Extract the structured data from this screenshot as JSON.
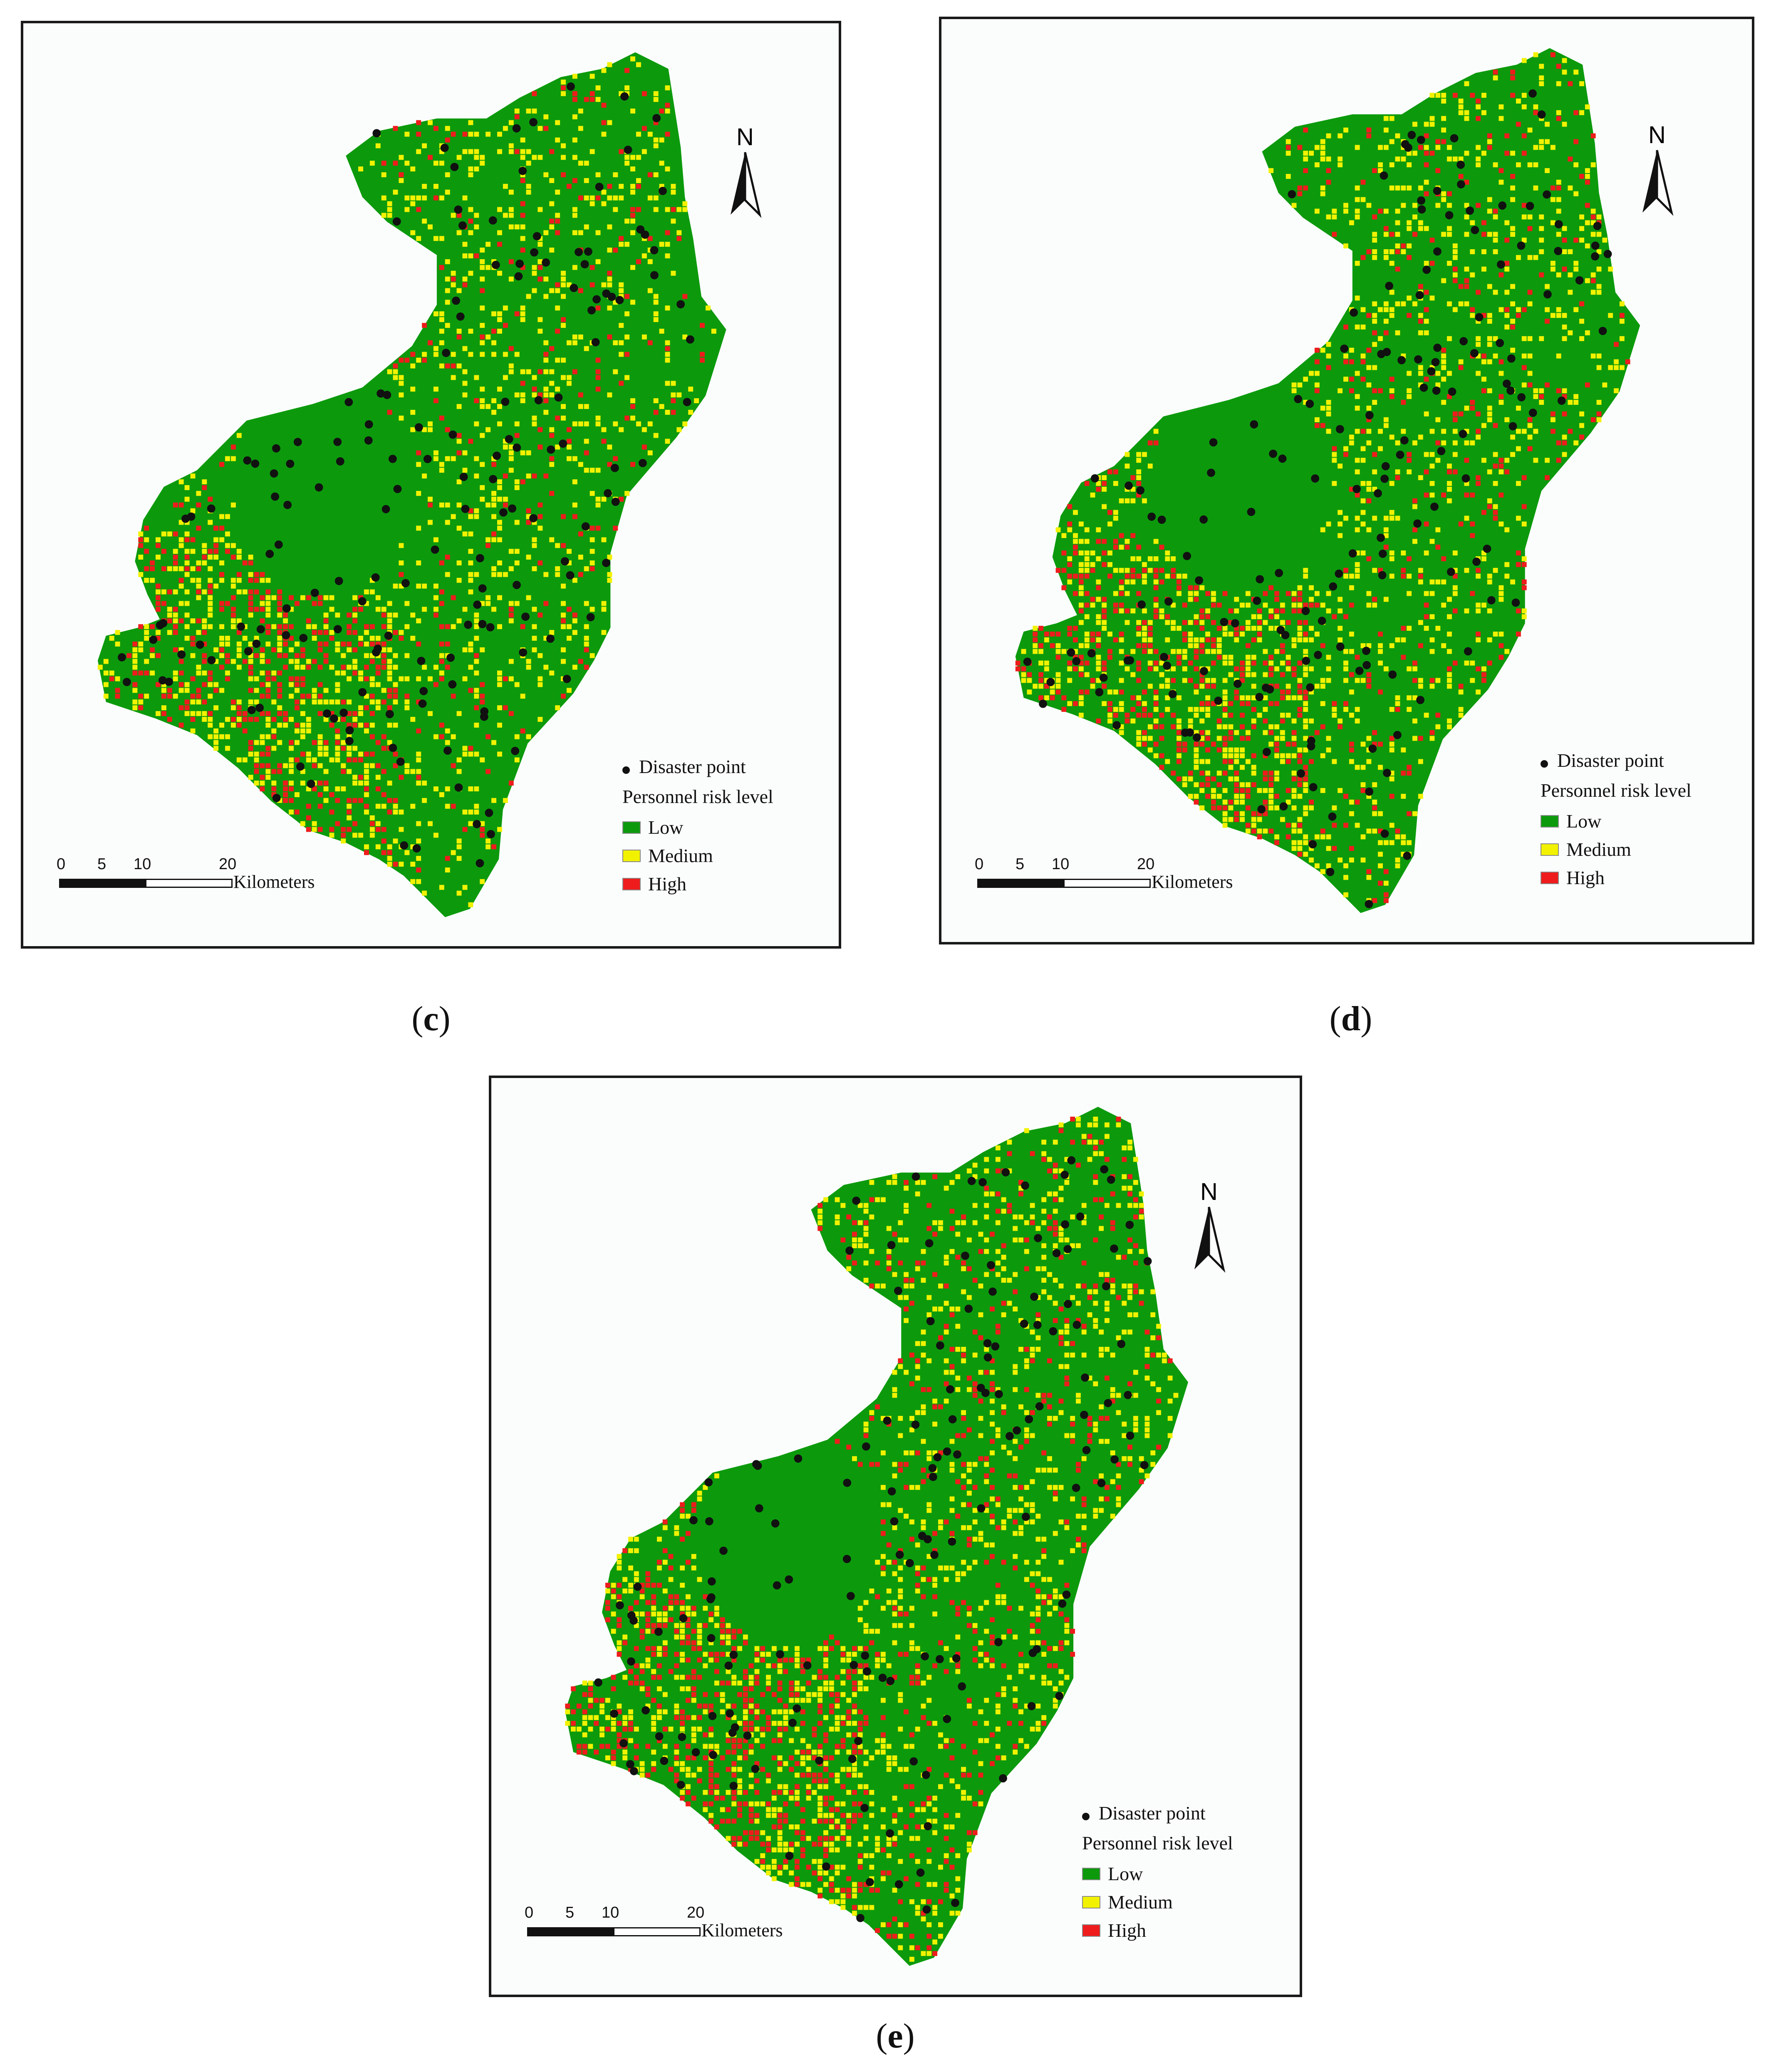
{
  "figure": {
    "panels": [
      {
        "id": "c",
        "caption_prefix": "(",
        "caption_letter": "c",
        "caption_suffix": ")"
      },
      {
        "id": "d",
        "caption_prefix": "(",
        "caption_letter": "d",
        "caption_suffix": ")"
      },
      {
        "id": "e",
        "caption_prefix": "(",
        "caption_letter": "e",
        "caption_suffix": ")"
      }
    ]
  },
  "legend": {
    "disaster_point": "Disaster point",
    "title": "Personnel risk level",
    "low": "Low",
    "medium": "Medium",
    "high": "High"
  },
  "north_arrow": {
    "label": "N"
  },
  "scale_bar": {
    "ticks": [
      "0",
      "5",
      "10",
      "20"
    ],
    "unit": "Kilometers"
  },
  "colors": {
    "low": "#0c9a0c",
    "medium": "#f2f200",
    "high": "#ee1c1c",
    "disaster_point": "#111111",
    "frame": "#1a1a1a"
  }
}
